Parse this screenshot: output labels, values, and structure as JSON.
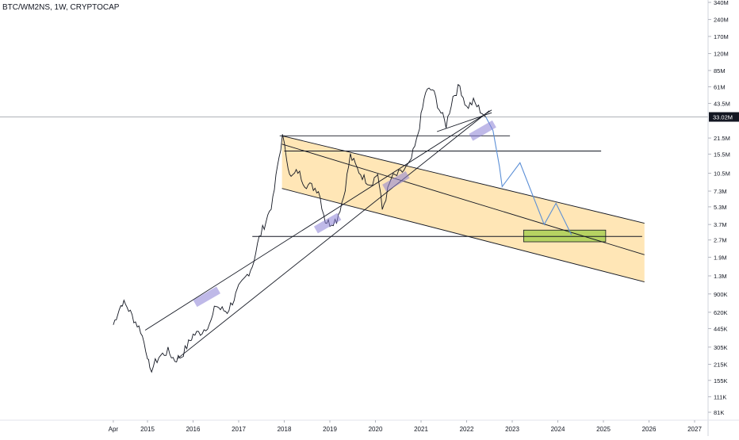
{
  "chart_data": {
    "type": "line",
    "symbol_label": "BTC/WM2NS, 1W, CRYPTOCAP",
    "y_scale": "log",
    "ylim": [
      70000,
      340000000
    ],
    "xlim": [
      2014.05,
      2027.1
    ],
    "x_ticks": [
      {
        "label": "Apr",
        "x": 2014.25
      },
      {
        "label": "2015",
        "x": 2015.0
      },
      {
        "label": "2016",
        "x": 2016.0
      },
      {
        "label": "2017",
        "x": 2017.0
      },
      {
        "label": "2018",
        "x": 2018.0
      },
      {
        "label": "2019",
        "x": 2019.0
      },
      {
        "label": "2020",
        "x": 2020.0
      },
      {
        "label": "2021",
        "x": 2021.0
      },
      {
        "label": "2022",
        "x": 2022.0
      },
      {
        "label": "2023",
        "x": 2023.0
      },
      {
        "label": "2024",
        "x": 2024.0
      },
      {
        "label": "2025",
        "x": 2025.0
      },
      {
        "label": "2026",
        "x": 2026.0
      },
      {
        "label": "2027",
        "x": 2027.0
      }
    ],
    "y_ticks": [
      {
        "label": "340M",
        "v": 340000000
      },
      {
        "label": "240M",
        "v": 240000000
      },
      {
        "label": "170M",
        "v": 170000000
      },
      {
        "label": "120M",
        "v": 120000000
      },
      {
        "label": "85M",
        "v": 85000000
      },
      {
        "label": "61M",
        "v": 61000000
      },
      {
        "label": "43.5M",
        "v": 43500000
      },
      {
        "label": "21.5M",
        "v": 21500000
      },
      {
        "label": "15.5M",
        "v": 15500000
      },
      {
        "label": "10.5M",
        "v": 10500000
      },
      {
        "label": "7.3M",
        "v": 7300000
      },
      {
        "label": "5.3M",
        "v": 5300000
      },
      {
        "label": "3.7M",
        "v": 3700000
      },
      {
        "label": "2.7M",
        "v": 2700000
      },
      {
        "label": "1.9M",
        "v": 1900000
      },
      {
        "label": "1.3M",
        "v": 1300000
      },
      {
        "label": "900K",
        "v": 900000
      },
      {
        "label": "620K",
        "v": 620000
      },
      {
        "label": "445K",
        "v": 445000
      },
      {
        "label": "305K",
        "v": 305000
      },
      {
        "label": "215K",
        "v": 215000
      },
      {
        "label": "155K",
        "v": 155000
      },
      {
        "label": "111K",
        "v": 111000
      },
      {
        "label": "81K",
        "v": 81000
      }
    ],
    "current_value": {
      "label": "33.02M",
      "v": 33020000
    },
    "series": [
      {
        "color": "#131722",
        "points": [
          [
            2014.25,
            480000
          ],
          [
            2014.35,
            620000
          ],
          [
            2014.45,
            760000
          ],
          [
            2014.55,
            700000
          ],
          [
            2014.7,
            540000
          ],
          [
            2014.85,
            430000
          ],
          [
            2015.0,
            260000
          ],
          [
            2015.05,
            185000
          ],
          [
            2015.25,
            250000
          ],
          [
            2015.45,
            280000
          ],
          [
            2015.6,
            235000
          ],
          [
            2015.75,
            255000
          ],
          [
            2015.9,
            330000
          ],
          [
            2016.0,
            390000
          ],
          [
            2016.2,
            420000
          ],
          [
            2016.4,
            520000
          ],
          [
            2016.5,
            720000
          ],
          [
            2016.6,
            660000
          ],
          [
            2016.75,
            630000
          ],
          [
            2016.9,
            820000
          ],
          [
            2017.0,
            1000000
          ],
          [
            2017.15,
            1250000
          ],
          [
            2017.3,
            1600000
          ],
          [
            2017.45,
            2800000
          ],
          [
            2017.6,
            4000000
          ],
          [
            2017.75,
            6000000
          ],
          [
            2017.85,
            12000000
          ],
          [
            2017.96,
            22000000
          ],
          [
            2018.05,
            14500000
          ],
          [
            2018.15,
            9500000
          ],
          [
            2018.3,
            11000000
          ],
          [
            2018.45,
            8500000
          ],
          [
            2018.6,
            8000000
          ],
          [
            2018.75,
            7500000
          ],
          [
            2018.9,
            4000000
          ],
          [
            2019.0,
            3800000
          ],
          [
            2019.15,
            4100000
          ],
          [
            2019.3,
            6500000
          ],
          [
            2019.45,
            15000000
          ],
          [
            2019.6,
            11500000
          ],
          [
            2019.75,
            9500000
          ],
          [
            2019.9,
            8500000
          ],
          [
            2020.05,
            10500000
          ],
          [
            2020.15,
            5000000
          ],
          [
            2020.35,
            9500000
          ],
          [
            2020.55,
            10500000
          ],
          [
            2020.75,
            12500000
          ],
          [
            2020.9,
            20000000
          ],
          [
            2021.0,
            33000000
          ],
          [
            2021.1,
            55000000
          ],
          [
            2021.25,
            58000000
          ],
          [
            2021.4,
            39000000
          ],
          [
            2021.55,
            28000000
          ],
          [
            2021.7,
            50000000
          ],
          [
            2021.85,
            62000000
          ],
          [
            2022.0,
            40000000
          ],
          [
            2022.15,
            45000000
          ],
          [
            2022.3,
            38000000
          ],
          [
            2022.42,
            33020000
          ]
        ]
      },
      {
        "color": "#5b8fd6",
        "points": [
          [
            2022.42,
            33020000
          ],
          [
            2022.58,
            25000000
          ],
          [
            2022.72,
            12000000
          ],
          [
            2022.78,
            8000000
          ],
          [
            2023.17,
            13000000
          ],
          [
            2023.7,
            3700000
          ],
          [
            2023.96,
            5700000
          ],
          [
            2024.3,
            3000000
          ]
        ]
      }
    ],
    "horizontal_levels": [
      {
        "v": 22500000,
        "x1": 2017.9,
        "x2": 2022.95
      },
      {
        "v": 16500000,
        "x1": 2018.0,
        "x2": 2024.95
      },
      {
        "v": 2900000,
        "x1": 2017.3,
        "x2": 2025.85
      }
    ],
    "trendlines": [
      {
        "from": [
          2014.95,
          430000
        ],
        "to": [
          2022.55,
          38000000
        ]
      },
      {
        "from": [
          2015.65,
          240000
        ],
        "to": [
          2022.5,
          37500000
        ]
      },
      {
        "from": [
          2021.35,
          24500000
        ],
        "to": [
          2022.55,
          36000000
        ]
      },
      {
        "from": [
          2017.95,
          19000000
        ],
        "to": [
          2025.9,
          2000000
        ]
      }
    ],
    "channel": {
      "color": "#ffd27a",
      "upper": [
        [
          2017.95,
          22500000
        ],
        [
          2025.9,
          3800000
        ]
      ],
      "lower": [
        [
          2017.95,
          7700000
        ],
        [
          2025.9,
          1150000
        ]
      ]
    },
    "markers": [
      {
        "x": 2016.3,
        "v": 850000
      },
      {
        "x": 2018.95,
        "v": 3800000
      },
      {
        "x": 2020.45,
        "v": 8900000
      },
      {
        "x": 2022.35,
        "v": 25000000
      }
    ],
    "target_box": {
      "x1": 2023.25,
      "x2": 2025.05,
      "v_high": 3300000,
      "v_low": 2600000,
      "color": "#a9cf54"
    }
  }
}
